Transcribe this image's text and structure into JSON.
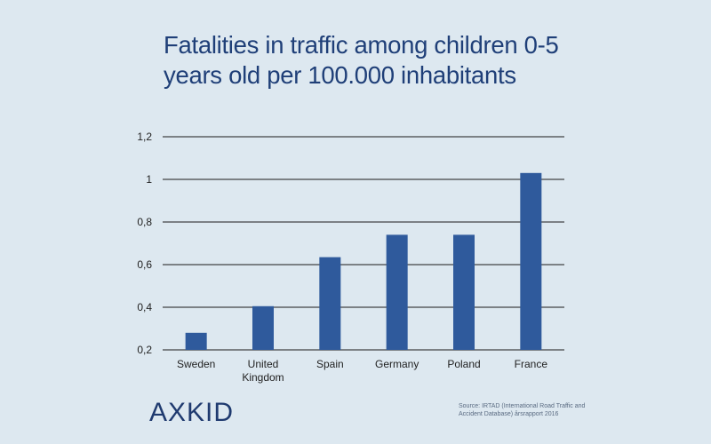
{
  "title_lines": [
    "Fatalities in traffic among children 0-5",
    "years old per 100.000 inhabitants"
  ],
  "logo_text": "AXKID",
  "source_lines": [
    "Source: IRTAD (International Road Traffic and",
    "Accident Database) årsrapport 2016"
  ],
  "colors": {
    "bar": "#2f5a9c",
    "grid": "#1a1a1a",
    "background": "#dde8f0",
    "title": "#1f3f78"
  },
  "chart_data": {
    "type": "bar",
    "title": "Fatalities in traffic among children 0-5 years old per 100.000 inhabitants",
    "categories": [
      "Sweden",
      "United Kingdom",
      "Spain",
      "Germany",
      "Poland",
      "France"
    ],
    "category_lines": [
      [
        "Sweden"
      ],
      [
        "United",
        "Kingdom"
      ],
      [
        "Spain"
      ],
      [
        "Germany"
      ],
      [
        "Poland"
      ],
      [
        "France"
      ]
    ],
    "values": [
      0.28,
      0.405,
      0.635,
      0.74,
      0.74,
      1.03
    ],
    "ylim": [
      0.2,
      1.2
    ],
    "yticks": [
      0.2,
      0.4,
      0.6,
      0.8,
      1.0,
      1.2
    ],
    "ytick_labels": [
      "0,2",
      "0,4",
      "0,6",
      "0,8",
      "1",
      "1,2"
    ],
    "xlabel": "",
    "ylabel": "",
    "grid": true,
    "legend": "none"
  }
}
